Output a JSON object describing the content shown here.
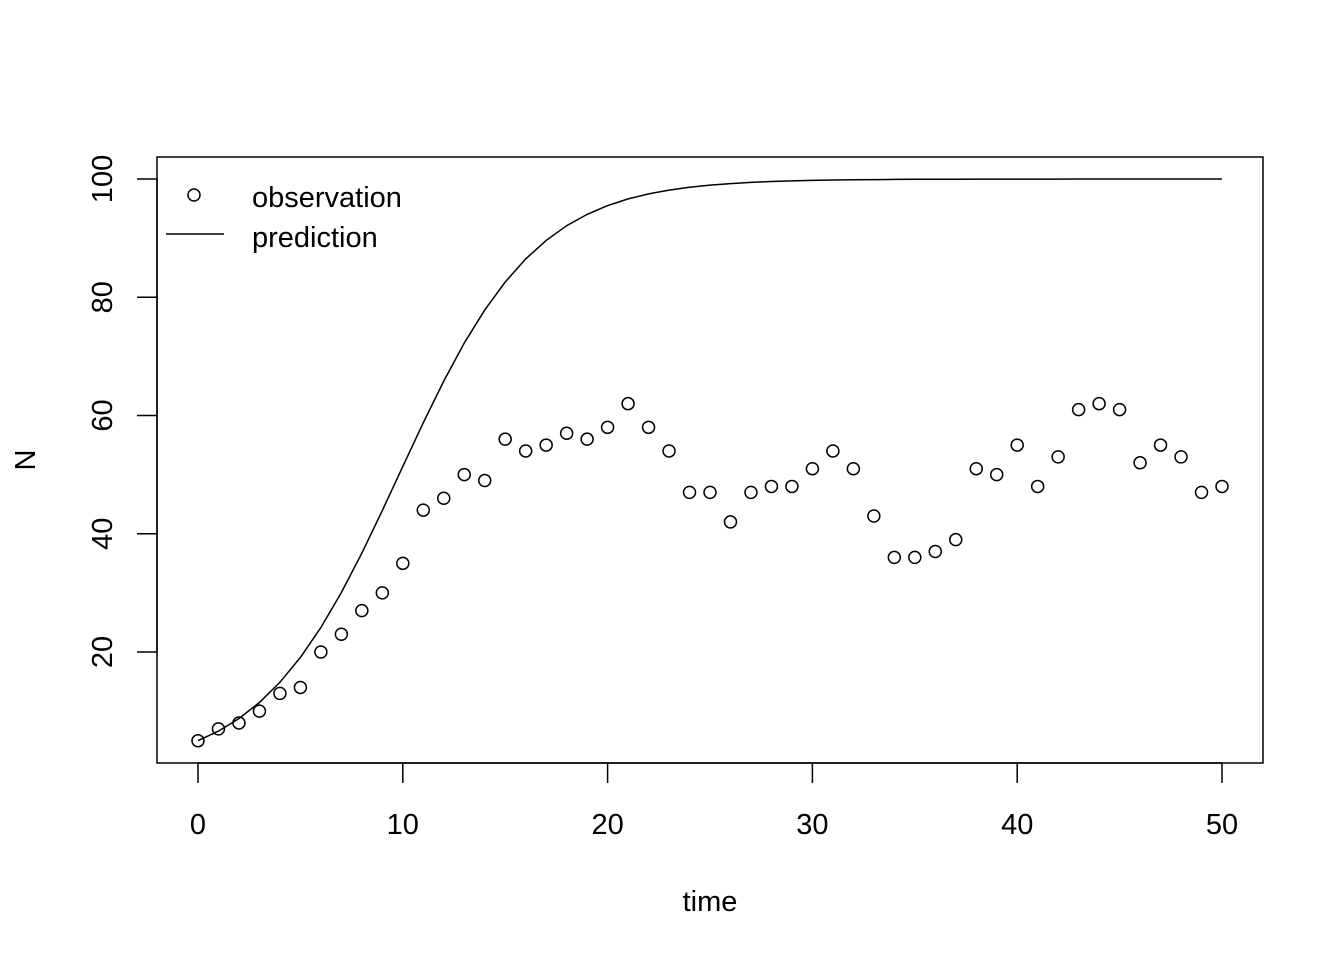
{
  "chart_data": {
    "type": "scatter",
    "title": "",
    "xlabel": "time",
    "ylabel": "N",
    "xlim": [
      -2,
      52
    ],
    "ylim": [
      0.5,
      103.5
    ],
    "xticks": [
      0,
      10,
      20,
      30,
      40,
      50
    ],
    "yticks": [
      20,
      40,
      60,
      80,
      100
    ],
    "grid": false,
    "legend": {
      "placement": "top-left",
      "entries": [
        {
          "label": "observation",
          "marker": "open-circle"
        },
        {
          "label": "prediction",
          "marker": "line"
        }
      ]
    },
    "series": [
      {
        "name": "observation",
        "type": "scatter",
        "x": [
          0,
          1,
          2,
          3,
          4,
          5,
          6,
          7,
          8,
          9,
          10,
          11,
          12,
          13,
          14,
          15,
          16,
          17,
          18,
          19,
          20,
          21,
          22,
          23,
          24,
          25,
          26,
          27,
          28,
          29,
          30,
          31,
          32,
          33,
          34,
          35,
          36,
          37,
          38,
          39,
          40,
          41,
          42,
          43,
          44,
          45,
          46,
          47,
          48,
          49,
          50
        ],
        "y": [
          5,
          7,
          8,
          10,
          13,
          14,
          20,
          23,
          27,
          30,
          35,
          44,
          46,
          50,
          49,
          56,
          54,
          55,
          57,
          56,
          58,
          62,
          58,
          54,
          47,
          47,
          42,
          47,
          48,
          48,
          51,
          54,
          51,
          43,
          36,
          36,
          37,
          39,
          51,
          50,
          55,
          48,
          53,
          61,
          62,
          61,
          52,
          55,
          53,
          47,
          48
        ]
      },
      {
        "name": "prediction",
        "type": "line",
        "x": [
          0,
          1,
          2,
          3,
          4,
          5,
          6,
          7,
          8,
          9,
          10,
          11,
          12,
          13,
          14,
          15,
          16,
          17,
          18,
          19,
          20,
          21,
          22,
          23,
          24,
          25,
          26,
          27,
          28,
          29,
          30,
          31,
          32,
          33,
          34,
          35,
          36,
          37,
          38,
          39,
          40,
          41,
          42,
          43,
          44,
          45,
          46,
          47,
          48,
          49,
          50
        ],
        "y": [
          5,
          6.63,
          8.76,
          11.46,
          14.87,
          19.08,
          24.15,
          30.06,
          36.71,
          43.92,
          51.39,
          58.79,
          65.83,
          72.25,
          77.82,
          82.58,
          86.48,
          89.62,
          92.1,
          94.02,
          95.5,
          96.63,
          97.48,
          98.12,
          98.6,
          98.96,
          99.23,
          99.43,
          99.57,
          99.68,
          99.77,
          99.83,
          99.87,
          99.9,
          99.93,
          99.95,
          99.96,
          99.97,
          99.98,
          99.98,
          99.99,
          99.99,
          99.99,
          100,
          100,
          100,
          100,
          100,
          100,
          100,
          100
        ]
      }
    ]
  }
}
